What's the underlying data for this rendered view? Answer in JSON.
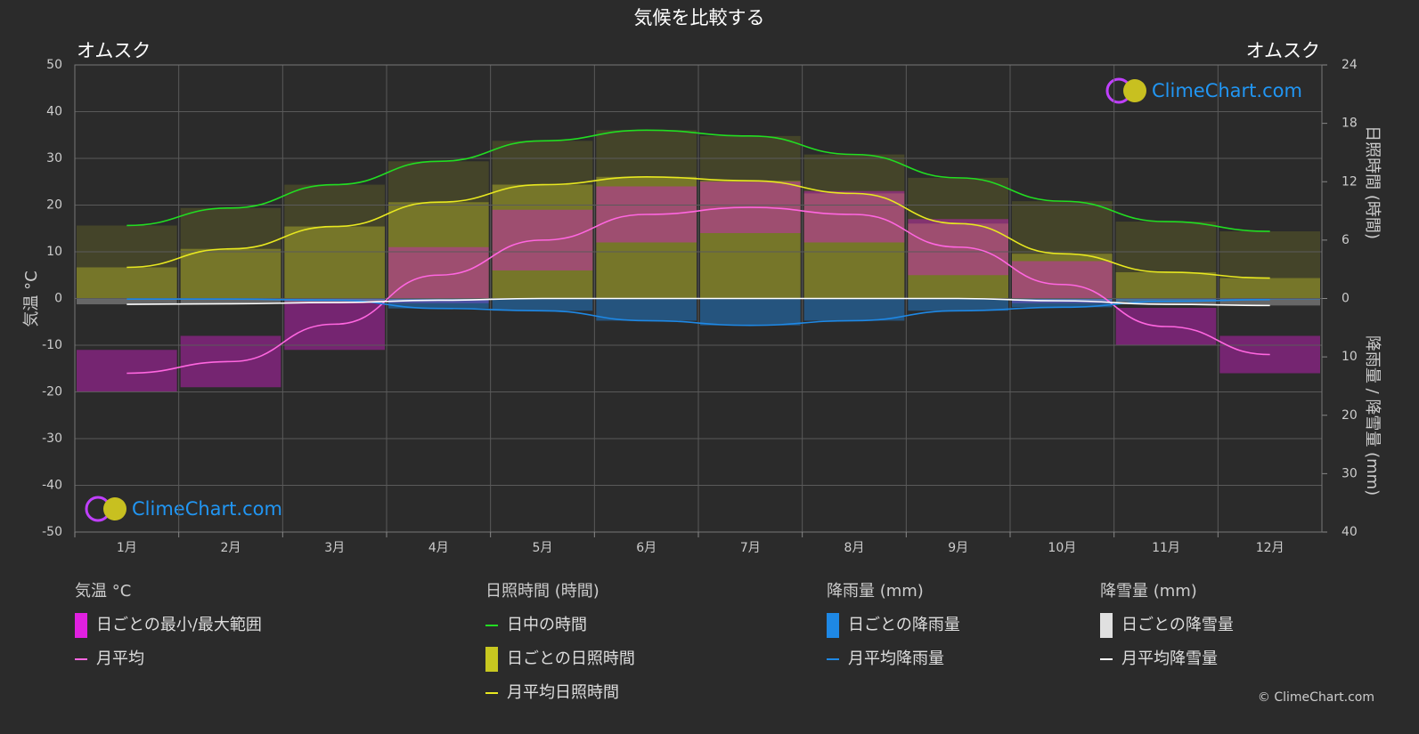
{
  "chart_data": {
    "type": "climate",
    "title": "気候を比較する",
    "location_left": "オムスク",
    "location_right": "オムスク",
    "categories": [
      "1月",
      "2月",
      "3月",
      "4月",
      "5月",
      "6月",
      "7月",
      "8月",
      "9月",
      "10月",
      "11月",
      "12月"
    ],
    "temp_axis": {
      "label": "気温 °C",
      "lim": [
        -50,
        50
      ],
      "ticks": [
        -50,
        -40,
        -30,
        -20,
        -10,
        0,
        10,
        20,
        30,
        40,
        50
      ]
    },
    "sun_axis": {
      "label": "日照時間 (時間)",
      "lim": [
        0,
        24
      ],
      "ticks": [
        0,
        6,
        12,
        18,
        24
      ]
    },
    "precip_axis": {
      "label": "降雨量 / 降雪量 (mm)",
      "lim": [
        0,
        40
      ],
      "ticks": [
        10,
        20,
        30,
        40
      ]
    },
    "grid": true,
    "temperature": {
      "color": "#ff66e0",
      "range_color": "#d020c8",
      "values": [
        -16,
        -13.5,
        -5.5,
        5,
        12.5,
        18,
        19.5,
        18,
        11,
        3,
        -6,
        -12
      ],
      "low": [
        -20,
        -19,
        -11,
        -1,
        6,
        12,
        14,
        12,
        5,
        -1,
        -10,
        -16
      ],
      "high": [
        -11,
        -8,
        0,
        11,
        19,
        24,
        25,
        23,
        17,
        8,
        -2,
        -8
      ]
    },
    "daylight": {
      "color": "#22dd22",
      "values": [
        7.5,
        9.3,
        11.7,
        14.1,
        16.2,
        17.3,
        16.7,
        14.8,
        12.4,
        10.0,
        7.9,
        6.9
      ]
    },
    "sunshine": {
      "color": "#e8e820",
      "values": [
        3.2,
        5.1,
        7.4,
        9.9,
        11.7,
        12.5,
        12.1,
        10.8,
        7.7,
        4.6,
        2.7,
        2.1
      ]
    },
    "rain": {
      "color": "#1e88e5",
      "values": [
        0.1,
        0.1,
        0.3,
        1.7,
        2.1,
        3.8,
        4.6,
        3.8,
        2.1,
        1.5,
        0.5,
        0.2
      ]
    },
    "snow": {
      "color": "#ffffff",
      "values": [
        1.0,
        0.9,
        0.7,
        0.3,
        0,
        0,
        0,
        0,
        0,
        0.4,
        1.0,
        1.2
      ]
    },
    "legend": [
      {
        "title": "気温 °C",
        "items": [
          {
            "name": "日ごとの最小/最大範囲",
            "color": "#e020e0",
            "kind": "box"
          },
          {
            "name": "月平均",
            "color": "#ff66e0",
            "kind": "line"
          }
        ]
      },
      {
        "title": "日照時間 (時間)",
        "items": [
          {
            "name": "日中の時間",
            "color": "#22dd22",
            "kind": "line"
          },
          {
            "name": "日ごとの日照時間",
            "color": "#c8c820",
            "kind": "box"
          },
          {
            "name": "月平均日照時間",
            "color": "#e8e820",
            "kind": "line"
          }
        ]
      },
      {
        "title": "降雨量 (mm)",
        "items": [
          {
            "name": "日ごとの降雨量",
            "color": "#1e88e5",
            "kind": "box"
          },
          {
            "name": "月平均降雨量",
            "color": "#1e88e5",
            "kind": "line"
          }
        ]
      },
      {
        "title": "降雪量 (mm)",
        "items": [
          {
            "name": "日ごとの降雪量",
            "color": "#e0e0e0",
            "kind": "box"
          },
          {
            "name": "月平均降雪量",
            "color": "#ffffff",
            "kind": "line"
          }
        ]
      }
    ],
    "logo": "ClimeChart.com",
    "copyright": "© ClimeChart.com"
  }
}
